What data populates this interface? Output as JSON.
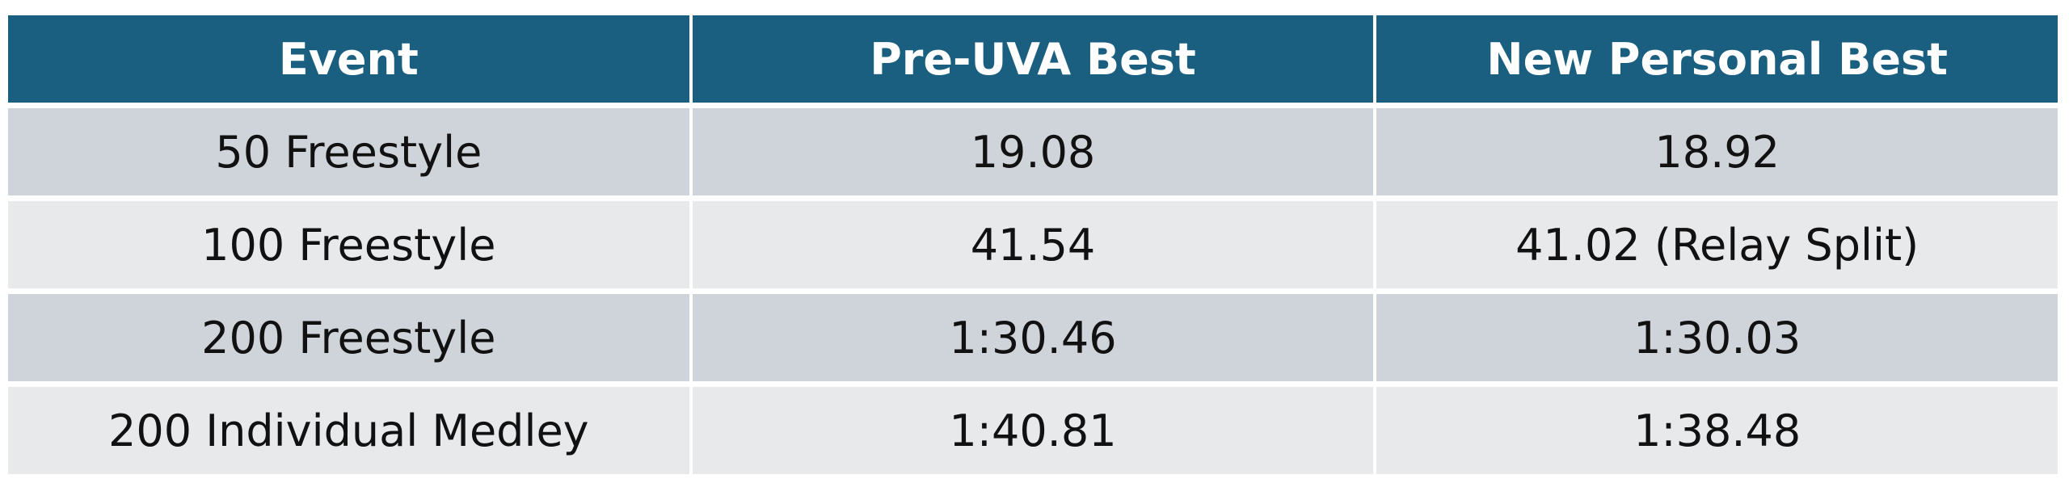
{
  "table": {
    "header": [
      "Event",
      "Pre-UVA Best",
      "New Personal Best"
    ],
    "rows": [
      [
        "50 Freestyle",
        "19.08",
        "18.92"
      ],
      [
        "100 Freestyle",
        "41.54",
        "41.02 (Relay Split)"
      ],
      [
        "200 Freestyle",
        "1:30.46",
        "1:30.03"
      ],
      [
        "200 Individual Medley",
        "1:40.81",
        "1:38.48"
      ]
    ]
  }
}
